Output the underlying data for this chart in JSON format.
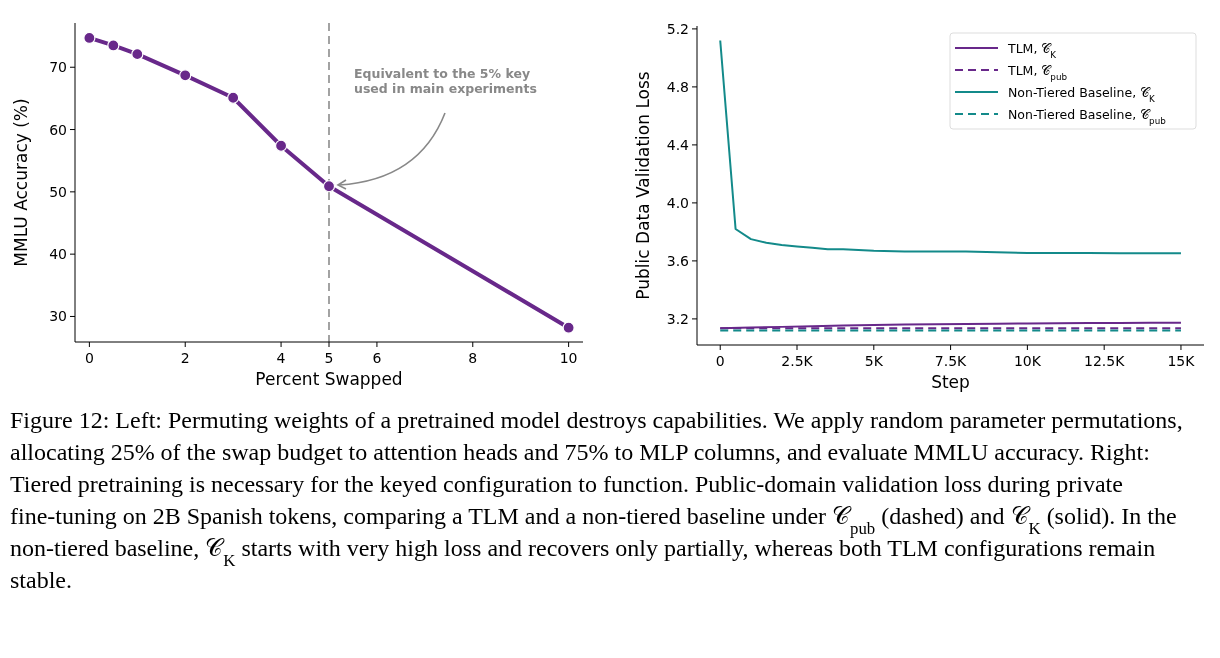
{
  "chart_data": [
    {
      "type": "line",
      "xlabel": "Percent Swapped",
      "ylabel": "MMLU Accuracy (%)",
      "x": [
        0,
        0.5,
        1,
        2,
        3,
        4,
        5,
        10
      ],
      "series": [
        {
          "color": "#68288a",
          "values": [
            74.7,
            73.5,
            72.1,
            68.7,
            65.1,
            57.4,
            50.9,
            28.2
          ],
          "marker": "circle",
          "line_style": "solid"
        }
      ],
      "xlim": [
        -0.3,
        10.3
      ],
      "xticks": [
        0,
        2,
        4,
        5,
        6,
        8,
        10
      ],
      "ylim": [
        25.9,
        77.1
      ],
      "yticks": [
        30,
        40,
        50,
        60,
        70
      ],
      "grid": false,
      "legend": false,
      "ref_lines": [
        {
          "axis": "x",
          "value": 5,
          "color": "#999999",
          "line_style": "dashed"
        }
      ],
      "annotations": [
        "Equivalent to the 5% key\nused in main experiments"
      ]
    },
    {
      "type": "line",
      "xlabel": "Step",
      "ylabel": "Public Data Validation Loss",
      "series": [
        {
          "name": "TLM, 𝒞$_{K}$",
          "color": "#68288a",
          "line_style": "solid",
          "x": [
            0,
            1000,
            2000,
            3000,
            4000,
            5000,
            6000,
            7000,
            8000,
            9000,
            10000,
            11000,
            12000,
            13000,
            14000,
            15000
          ],
          "values": [
            3.135,
            3.14,
            3.145,
            3.15,
            3.155,
            3.158,
            3.161,
            3.163,
            3.165,
            3.167,
            3.168,
            3.17,
            3.171,
            3.172,
            3.173,
            3.174
          ]
        },
        {
          "name": "TLM, 𝒞$_{pub}$",
          "color": "#68288a",
          "line_style": "dashed",
          "x": [
            0,
            15000
          ],
          "values": [
            3.135,
            3.135
          ]
        },
        {
          "name": "Non-Tiered Baseline, 𝒞$_{K}$",
          "color": "#138a8a",
          "line_style": "solid",
          "x": [
            0,
            500,
            1000,
            1500,
            2000,
            2500,
            3000,
            3500,
            4000,
            5000,
            6000,
            7000,
            8000,
            9000,
            10000,
            11000,
            12000,
            13000,
            14000,
            15000
          ],
          "values": [
            5.12,
            3.82,
            3.75,
            3.725,
            3.71,
            3.7,
            3.69,
            3.68,
            3.68,
            3.67,
            3.665,
            3.665,
            3.665,
            3.66,
            3.655,
            3.655,
            3.655,
            3.653,
            3.652,
            3.652
          ]
        },
        {
          "name": "Non-Tiered Baseline, 𝒞$_{pub}$",
          "color": "#138a8a",
          "line_style": "dashed",
          "x": [
            0,
            15000
          ],
          "values": [
            3.12,
            3.12
          ]
        }
      ],
      "xlim": [
        -756,
        15750
      ],
      "xticks": [
        0,
        {
          "value": 2500,
          "label": "2.5K"
        },
        {
          "value": 5000,
          "label": "5K"
        },
        {
          "value": 7500,
          "label": "7.5K"
        },
        {
          "value": 10000,
          "label": "10K"
        },
        {
          "value": 12500,
          "label": "12.5K"
        },
        {
          "value": 15000,
          "label": "15K"
        }
      ],
      "ylim": [
        3.02,
        5.22
      ],
      "yticks": [
        3.2,
        3.6,
        {
          "value": 4,
          "label": "4.0"
        },
        4.4,
        4.8,
        5.2
      ],
      "grid": false,
      "legend": "top right",
      "marker": "none"
    },
    {
      "type": "other",
      "annotations": [
        "Figure 12: Left: Permuting weights of a pretrained model destroys capabilities. We apply random parameter permutations, allocating 25% of the swap budget to attention heads and 75% to MLP columns, and evaluate MMLU accuracy. Right: Tiered pretraining is necessary for the keyed configuration to function. Public-domain validation loss during private fine-tuning on 2B Spanish tokens, comparing a TLM and a non-tiered baseline under 𝒞$_{pub}$ (dashed) and 𝒞$_{K}$ (solid). In the non-tiered baseline, 𝒞$_{K}$ starts with very high loss and recovers only partially, whereas both TLM configurations remain stable."
      ]
    }
  ]
}
